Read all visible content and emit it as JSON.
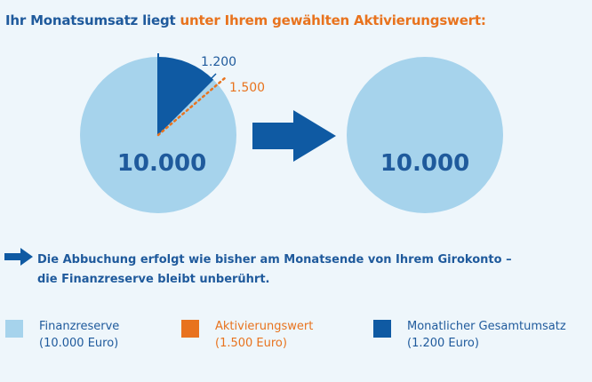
{
  "title": {
    "part1": "Ihr Monatsumsatz liegt ",
    "part2": "unter Ihrem gewählten Aktivierungswert:"
  },
  "pies": {
    "left_value": "10.000",
    "right_value": "10.000",
    "callout_umsatz": "1.200",
    "callout_aktivierung": "1.500"
  },
  "note": {
    "line1": "Die Abbuchung erfolgt wie bisher am Monatsende von Ihrem Girokonto –",
    "line2": "die Finanzreserve bleibt unberührt."
  },
  "legend": [
    {
      "label": "Finanzreserve",
      "value": "(10.000 Euro)",
      "color": "#a6d3ec",
      "text_color": "#1f5a9c"
    },
    {
      "label": "Aktivierungswert",
      "value": "(1.500 Euro)",
      "color": "#e8731e",
      "text_color": "#e8731e"
    },
    {
      "label": "Monatlicher Gesamtumsatz",
      "value": "(1.200 Euro)",
      "color": "#0f5aa3",
      "text_color": "#1f5a9c"
    }
  ],
  "colors": {
    "light_blue": "#a6d3ec",
    "dark_blue": "#0f5aa3",
    "orange": "#e8731e",
    "text_blue": "#1f5a9c"
  }
}
